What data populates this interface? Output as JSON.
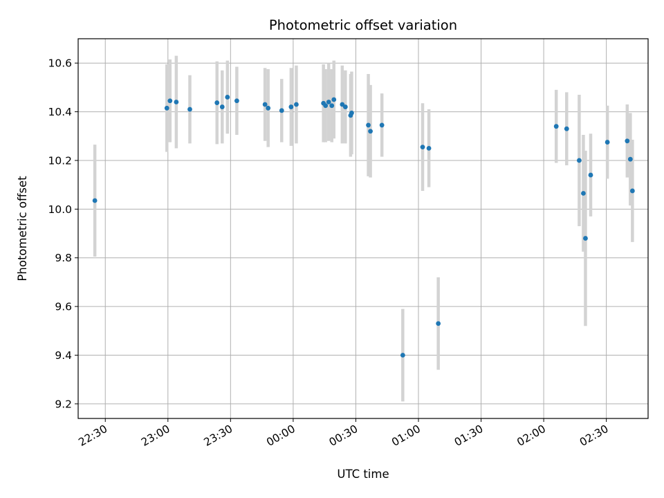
{
  "chart_data": {
    "type": "scatter",
    "title": "Photometric offset variation",
    "xlabel": "UTC time",
    "ylabel": "Photometric offset",
    "grid": true,
    "legend": "none",
    "colors": {
      "marker": "#1f77b4",
      "errorbar": "#d3d3d3",
      "grid": "#b0b0b0"
    },
    "xlim": [
      "22:17",
      "02:50"
    ],
    "ylim": [
      9.14,
      10.7
    ],
    "x_ticks": [
      "22:30",
      "23:00",
      "23:30",
      "00:00",
      "00:30",
      "01:00",
      "01:30",
      "02:00",
      "02:30"
    ],
    "y_ticks": [
      9.2,
      9.4,
      9.6,
      9.8,
      10.0,
      10.2,
      10.4,
      10.6
    ],
    "y_tick_labels": [
      "9.2",
      "9.4",
      "9.6",
      "9.8",
      "10.0",
      "10.2",
      "10.4",
      "10.6"
    ],
    "points": [
      {
        "t": "22:25:00",
        "y": 10.035,
        "err": 0.23
      },
      {
        "t": "22:59:30",
        "y": 10.415,
        "err": 0.18
      },
      {
        "t": "23:01:00",
        "y": 10.445,
        "err": 0.17
      },
      {
        "t": "23:04:00",
        "y": 10.44,
        "err": 0.19
      },
      {
        "t": "23:10:30",
        "y": 10.41,
        "err": 0.14
      },
      {
        "t": "23:23:30",
        "y": 10.437,
        "err": 0.17
      },
      {
        "t": "23:26:00",
        "y": 10.42,
        "err": 0.15
      },
      {
        "t": "23:28:30",
        "y": 10.46,
        "err": 0.15
      },
      {
        "t": "23:33:00",
        "y": 10.445,
        "err": 0.14
      },
      {
        "t": "23:46:30",
        "y": 10.43,
        "err": 0.15
      },
      {
        "t": "23:48:00",
        "y": 10.415,
        "err": 0.16
      },
      {
        "t": "23:54:30",
        "y": 10.405,
        "err": 0.13
      },
      {
        "t": "23:59:00",
        "y": 10.42,
        "err": 0.16
      },
      {
        "t": "00:01:30",
        "y": 10.43,
        "err": 0.16
      },
      {
        "t": "00:14:30",
        "y": 10.435,
        "err": 0.16
      },
      {
        "t": "00:15:30",
        "y": 10.425,
        "err": 0.15
      },
      {
        "t": "00:17:00",
        "y": 10.44,
        "err": 0.16
      },
      {
        "t": "00:18:30",
        "y": 10.425,
        "err": 0.15
      },
      {
        "t": "00:19:30",
        "y": 10.45,
        "err": 0.16
      },
      {
        "t": "00:23:30",
        "y": 10.43,
        "err": 0.16
      },
      {
        "t": "00:25:00",
        "y": 10.42,
        "err": 0.15
      },
      {
        "t": "00:27:30",
        "y": 10.385,
        "err": 0.17
      },
      {
        "t": "00:28:00",
        "y": 10.395,
        "err": 0.17
      },
      {
        "t": "00:36:00",
        "y": 10.345,
        "err": 0.21
      },
      {
        "t": "00:37:00",
        "y": 10.32,
        "err": 0.19
      },
      {
        "t": "00:42:30",
        "y": 10.345,
        "err": 0.13
      },
      {
        "t": "00:52:30",
        "y": 9.4,
        "err": 0.19
      },
      {
        "t": "01:02:00",
        "y": 10.255,
        "err": 0.18
      },
      {
        "t": "01:05:00",
        "y": 10.25,
        "err": 0.16
      },
      {
        "t": "01:09:30",
        "y": 9.53,
        "err": 0.19
      },
      {
        "t": "02:06:00",
        "y": 10.34,
        "err": 0.15
      },
      {
        "t": "02:11:00",
        "y": 10.33,
        "err": 0.15
      },
      {
        "t": "02:17:00",
        "y": 10.2,
        "err": 0.27
      },
      {
        "t": "02:19:00",
        "y": 10.065,
        "err": 0.24
      },
      {
        "t": "02:20:00",
        "y": 9.88,
        "err": 0.36
      },
      {
        "t": "02:22:30",
        "y": 10.14,
        "err": 0.17
      },
      {
        "t": "02:30:30",
        "y": 10.275,
        "err": 0.15
      },
      {
        "t": "02:40:00",
        "y": 10.28,
        "err": 0.15
      },
      {
        "t": "02:41:30",
        "y": 10.205,
        "err": 0.19
      },
      {
        "t": "02:42:30",
        "y": 10.075,
        "err": 0.21
      }
    ]
  }
}
